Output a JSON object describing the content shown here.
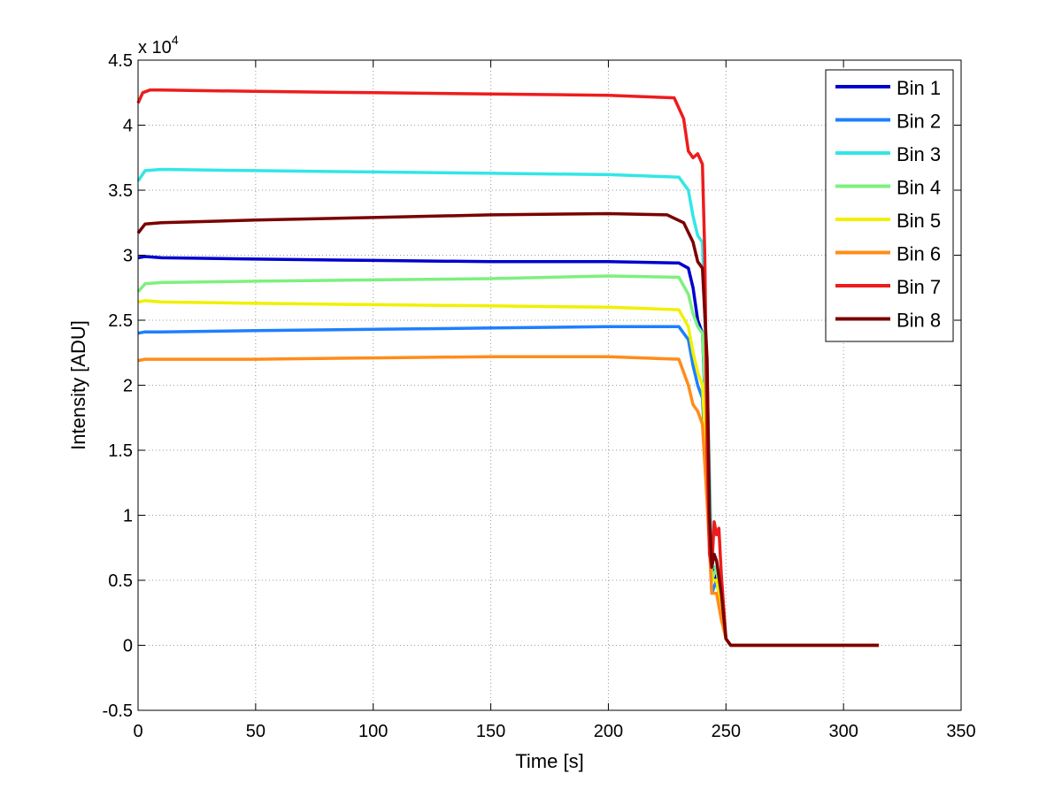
{
  "chart_data": {
    "type": "line",
    "xlabel": "Time [s]",
    "ylabel": "Intensity [ADU]",
    "y_exponent_label": "x 10",
    "y_exponent_power": "4",
    "xlim": [
      0,
      350
    ],
    "ylim": [
      -0.5,
      4.5
    ],
    "y_scale_multiplier": 10000,
    "xticks": [
      0,
      50,
      100,
      150,
      200,
      250,
      300,
      350
    ],
    "xtick_labels": [
      "0",
      "50",
      "100",
      "150",
      "200",
      "250",
      "300",
      "350"
    ],
    "yticks": [
      -0.5,
      0,
      0.5,
      1,
      1.5,
      2,
      2.5,
      3,
      3.5,
      4,
      4.5
    ],
    "ytick_labels": [
      "-0.5",
      "0",
      "0.5",
      "1",
      "1.5",
      "2",
      "2.5",
      "3",
      "3.5",
      "4",
      "4.5"
    ],
    "grid": true,
    "legend_position": "top-right",
    "series": [
      {
        "name": "Bin 1",
        "color": "#0000cd",
        "x": [
          0,
          3,
          10,
          50,
          100,
          150,
          200,
          230,
          234,
          236,
          238,
          240,
          242,
          244,
          246,
          248,
          250,
          252,
          315
        ],
        "y": [
          2.98,
          2.99,
          2.98,
          2.97,
          2.96,
          2.95,
          2.95,
          2.94,
          2.9,
          2.75,
          2.5,
          2.4,
          1.5,
          0.6,
          0.5,
          0.3,
          0.05,
          0,
          0
        ]
      },
      {
        "name": "Bin 2",
        "color": "#1e7fff",
        "x": [
          0,
          3,
          10,
          50,
          100,
          150,
          200,
          230,
          234,
          236,
          238,
          240,
          242,
          244,
          246,
          248,
          250,
          252,
          315
        ],
        "y": [
          2.4,
          2.41,
          2.41,
          2.42,
          2.43,
          2.44,
          2.45,
          2.45,
          2.35,
          2.15,
          2.0,
          1.9,
          1.2,
          0.4,
          0.5,
          0.3,
          0.05,
          0,
          0
        ]
      },
      {
        "name": "Bin 3",
        "color": "#33e6e6",
        "x": [
          0,
          3,
          10,
          50,
          100,
          150,
          200,
          230,
          234,
          236,
          238,
          240,
          242,
          244,
          246,
          248,
          250,
          252,
          315
        ],
        "y": [
          3.57,
          3.65,
          3.66,
          3.65,
          3.64,
          3.63,
          3.62,
          3.6,
          3.5,
          3.3,
          3.15,
          3.1,
          2.0,
          0.6,
          0.6,
          0.3,
          0.05,
          0,
          0
        ]
      },
      {
        "name": "Bin 4",
        "color": "#7ef07e",
        "x": [
          0,
          3,
          10,
          50,
          100,
          150,
          200,
          230,
          234,
          236,
          238,
          240,
          242,
          244,
          246,
          248,
          250,
          252,
          315
        ],
        "y": [
          2.72,
          2.78,
          2.79,
          2.8,
          2.81,
          2.82,
          2.84,
          2.83,
          2.7,
          2.55,
          2.45,
          2.4,
          1.6,
          0.5,
          0.6,
          0.3,
          0.05,
          0,
          0
        ]
      },
      {
        "name": "Bin 5",
        "color": "#f0f000",
        "x": [
          0,
          3,
          10,
          50,
          100,
          150,
          200,
          230,
          234,
          236,
          238,
          240,
          242,
          244,
          246,
          248,
          250,
          252,
          315
        ],
        "y": [
          2.64,
          2.65,
          2.64,
          2.63,
          2.62,
          2.61,
          2.6,
          2.58,
          2.45,
          2.25,
          2.1,
          2.0,
          1.3,
          0.5,
          0.5,
          0.3,
          0.05,
          0,
          0
        ]
      },
      {
        "name": "Bin 6",
        "color": "#ff8c1a",
        "x": [
          0,
          3,
          10,
          50,
          100,
          150,
          200,
          230,
          234,
          236,
          238,
          240,
          242,
          244,
          246,
          248,
          250,
          252,
          315
        ],
        "y": [
          2.19,
          2.2,
          2.2,
          2.2,
          2.21,
          2.22,
          2.22,
          2.2,
          2.0,
          1.85,
          1.8,
          1.7,
          1.1,
          0.4,
          0.4,
          0.2,
          0.05,
          0,
          0
        ]
      },
      {
        "name": "Bin 7",
        "color": "#ee1c1c",
        "x": [
          0,
          2,
          5,
          10,
          50,
          100,
          150,
          200,
          228,
          232,
          234,
          236,
          238,
          240,
          241,
          242,
          243,
          244,
          245,
          246,
          247,
          248,
          249,
          250,
          252,
          315
        ],
        "y": [
          4.17,
          4.25,
          4.27,
          4.27,
          4.26,
          4.25,
          4.24,
          4.23,
          4.21,
          4.05,
          3.8,
          3.75,
          3.78,
          3.7,
          3.0,
          1.5,
          0.7,
          0.6,
          0.95,
          0.85,
          0.9,
          0.55,
          0.3,
          0.05,
          0,
          0
        ]
      },
      {
        "name": "Bin 8",
        "color": "#7a0000",
        "x": [
          0,
          3,
          10,
          50,
          100,
          150,
          200,
          225,
          232,
          236,
          238,
          240,
          242,
          243,
          244,
          245,
          246,
          248,
          250,
          252,
          315
        ],
        "y": [
          3.17,
          3.24,
          3.25,
          3.27,
          3.29,
          3.31,
          3.32,
          3.31,
          3.25,
          3.1,
          2.95,
          2.9,
          2.2,
          1.0,
          0.6,
          0.7,
          0.65,
          0.4,
          0.05,
          0,
          0
        ]
      }
    ]
  }
}
